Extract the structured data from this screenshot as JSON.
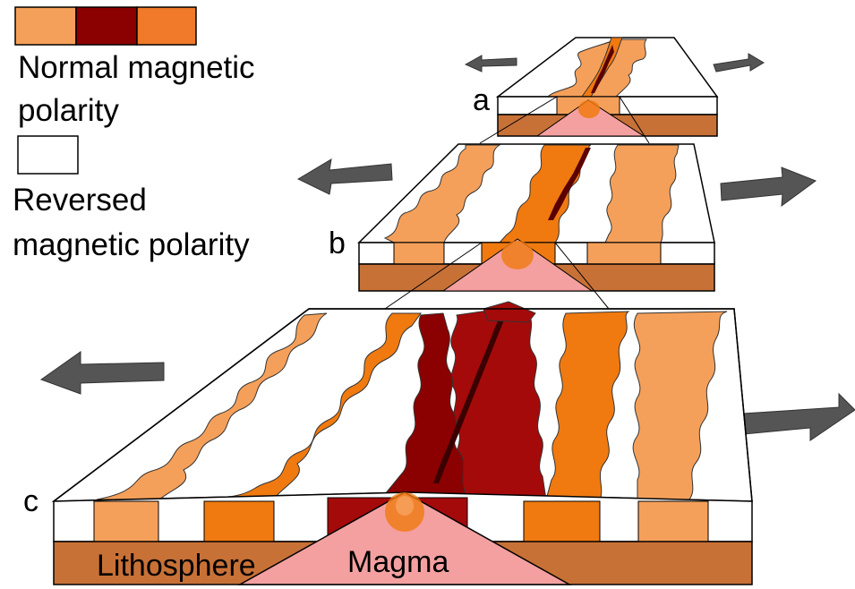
{
  "legend": {
    "normal": {
      "line1": "Normal magnetic",
      "line2": "polarity",
      "swatch_colors": [
        "#f5a05a",
        "#8b0000",
        "#f07a2a"
      ]
    },
    "reversed": {
      "line1": "Reversed",
      "line2": "magnetic polarity",
      "swatch_color": "#ffffff"
    }
  },
  "stages": {
    "a": "a",
    "b": "b",
    "c": "c"
  },
  "layers": {
    "lithosphere": "Lithosphere",
    "magma": "Magma"
  },
  "colors": {
    "normal_light": "#f5a05a",
    "normal_orange": "#f07a10",
    "normal_dark": "#8b0000",
    "lithosphere": "#c87137",
    "magma": "#f4a0a0",
    "arrow": "#555555"
  }
}
